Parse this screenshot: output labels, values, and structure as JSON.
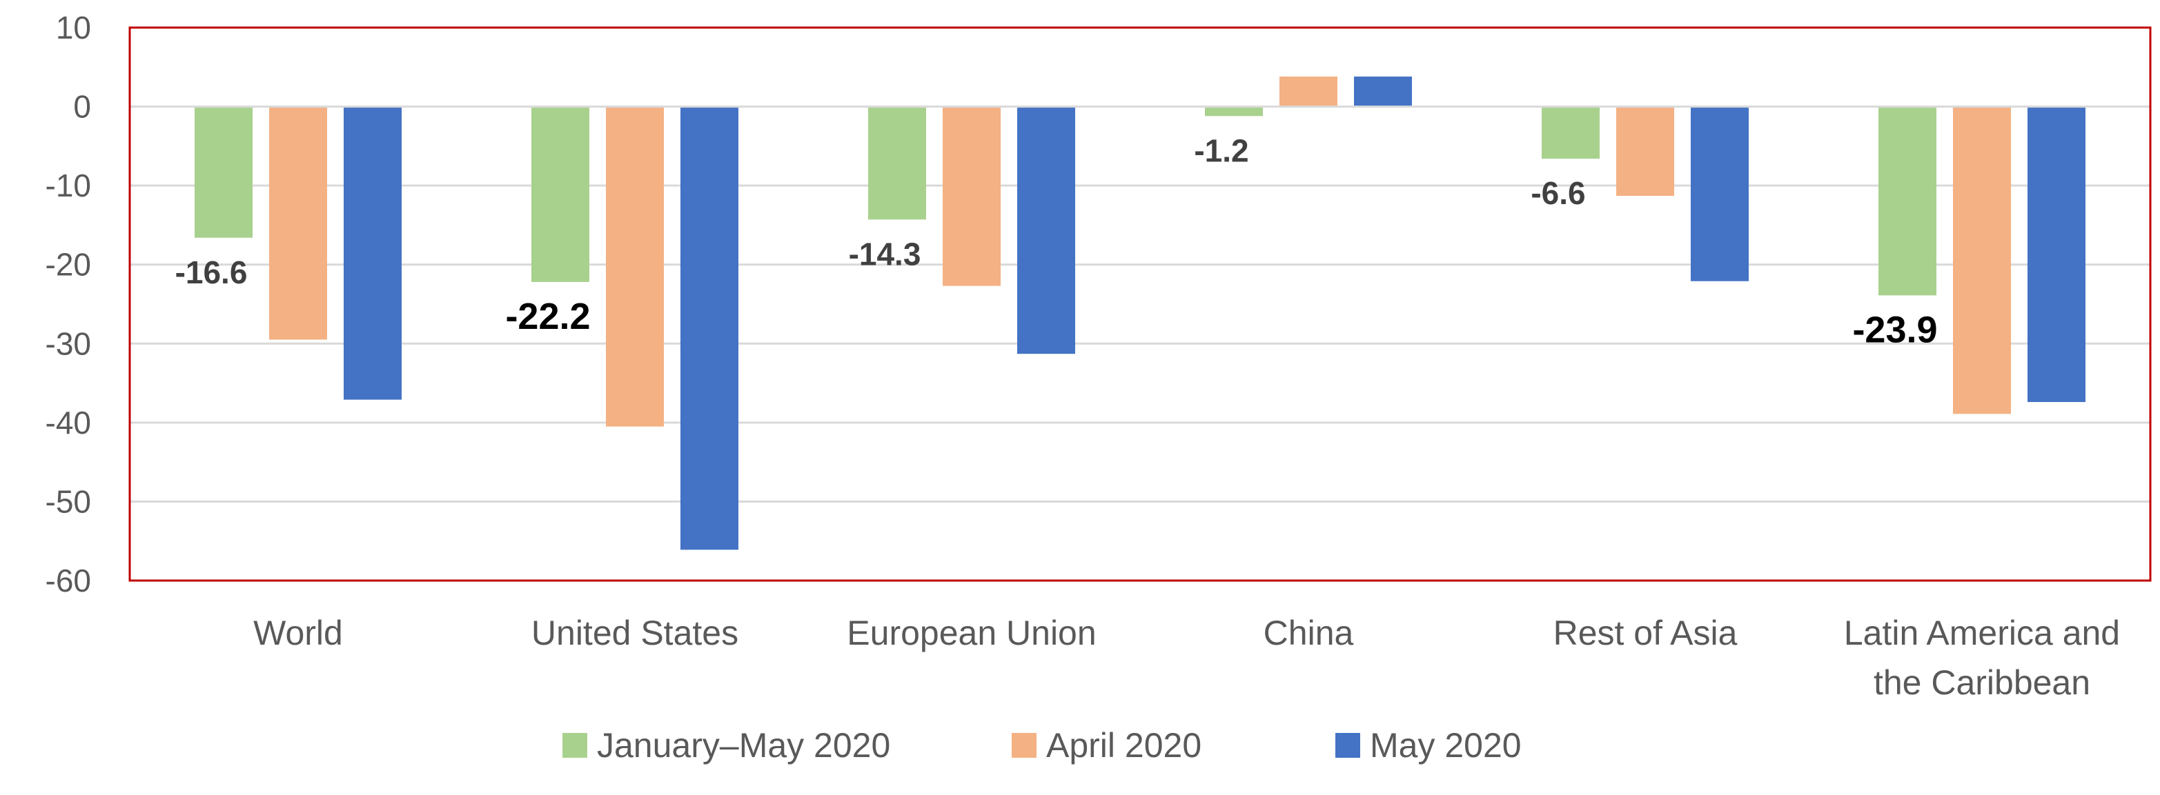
{
  "chart_data": {
    "type": "bar",
    "categories": [
      "World",
      "United States",
      "European Union",
      "China",
      "Rest of Asia",
      "Latin America and the Caribbean"
    ],
    "category_lines": [
      [
        "World"
      ],
      [
        "United States"
      ],
      [
        "European Union"
      ],
      [
        "China"
      ],
      [
        "Rest of Asia"
      ],
      [
        "Latin America and",
        "the Caribbean"
      ]
    ],
    "series": [
      {
        "name": "January–May 2020",
        "color": "#A9D18E",
        "values": [
          -16.6,
          -22.2,
          -14.3,
          -1.2,
          -6.6,
          -23.9
        ]
      },
      {
        "name": "April 2020",
        "color": "#F4B183",
        "values": [
          -29.5,
          -40.5,
          -22.7,
          3.8,
          -11.3,
          -38.9
        ]
      },
      {
        "name": "May 2020",
        "color": "#4472C4",
        "values": [
          -37.1,
          -56.1,
          -31.3,
          3.8,
          -22.1,
          -37.4
        ]
      }
    ],
    "data_labels": [
      {
        "series": 0,
        "category": 0,
        "text": "-16.6",
        "emphasis": false
      },
      {
        "series": 0,
        "category": 1,
        "text": "-22.2",
        "emphasis": true
      },
      {
        "series": 0,
        "category": 2,
        "text": "-14.3",
        "emphasis": false
      },
      {
        "series": 0,
        "category": 3,
        "text": "-1.2",
        "emphasis": false
      },
      {
        "series": 0,
        "category": 4,
        "text": "-6.6",
        "emphasis": false
      },
      {
        "series": 0,
        "category": 5,
        "text": "-23.9",
        "emphasis": true
      }
    ],
    "ylim": [
      -60,
      10
    ],
    "yticks": [
      "10",
      "0",
      "-10",
      "-20",
      "-30",
      "-40",
      "-50",
      "-60"
    ],
    "grid": true,
    "legend": "bottom",
    "plot_border_color": "#C00000",
    "gridline_color": "#D9D9D9",
    "xlabel": "",
    "ylabel": "",
    "title": ""
  }
}
